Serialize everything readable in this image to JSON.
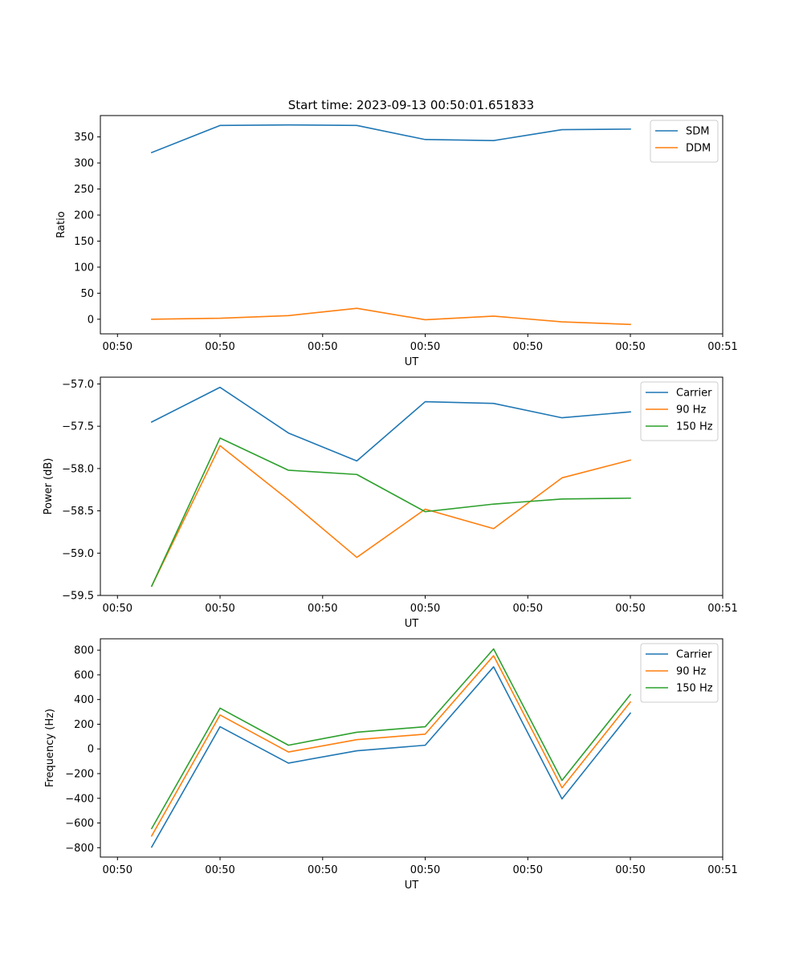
{
  "figure": {
    "title": "Start time: 2023-09-13 00:50:01.651833"
  },
  "colors": {
    "blue": "#1f77b4",
    "orange": "#ff7f0e",
    "green": "#2ca02c"
  },
  "chart_data": [
    {
      "type": "line",
      "title": "Start time: 2023-09-13 00:50:01.651833",
      "xlabel": "UT",
      "ylabel": "Ratio",
      "x": [
        1,
        2,
        3,
        4,
        5,
        6,
        7,
        8
      ],
      "xlim": [
        0.25,
        9.35
      ],
      "ylim": [
        -28,
        391
      ],
      "xticks": [
        0.5,
        2,
        3.5,
        5,
        6.5,
        8,
        9.35
      ],
      "xtick_labels": [
        "00:50",
        "00:50",
        "00:50",
        "00:50",
        "00:50",
        "00:50",
        "00:51"
      ],
      "yticks": [
        0,
        50,
        100,
        150,
        200,
        250,
        300,
        350
      ],
      "ytick_labels": [
        "0",
        "50",
        "100",
        "150",
        "200",
        "250",
        "300",
        "350"
      ],
      "legend": "top-right",
      "series": [
        {
          "name": "SDM",
          "color": "#1f77b4",
          "values": [
            320,
            372,
            373,
            372,
            345,
            343,
            364,
            365
          ]
        },
        {
          "name": "DDM",
          "color": "#ff7f0e",
          "values": [
            0,
            2,
            7,
            21,
            -1,
            6,
            -5,
            -10
          ]
        }
      ]
    },
    {
      "type": "line",
      "title": "",
      "xlabel": "UT",
      "ylabel": "Power (dB)",
      "x": [
        1,
        2,
        3,
        4,
        5,
        6,
        7,
        8
      ],
      "xlim": [
        0.25,
        9.35
      ],
      "ylim": [
        -59.5,
        -56.92
      ],
      "xticks": [
        0.5,
        2,
        3.5,
        5,
        6.5,
        8,
        9.35
      ],
      "xtick_labels": [
        "00:50",
        "00:50",
        "00:50",
        "00:50",
        "00:50",
        "00:50",
        "00:51"
      ],
      "yticks": [
        -59.5,
        -59.0,
        -58.5,
        -58.0,
        -57.5,
        -57.0
      ],
      "ytick_labels": [
        "−59.5",
        "−59.0",
        "−58.5",
        "−58.0",
        "−57.5",
        "−57.0"
      ],
      "legend": "top-right",
      "series": [
        {
          "name": "Carrier",
          "color": "#1f77b4",
          "values": [
            -57.45,
            -57.04,
            -57.58,
            -57.91,
            -57.21,
            -57.23,
            -57.4,
            -57.33
          ]
        },
        {
          "name": "90 Hz",
          "color": "#ff7f0e",
          "values": [
            -59.39,
            -57.73,
            -58.37,
            -59.05,
            -58.48,
            -58.71,
            -58.11,
            -57.9
          ]
        },
        {
          "name": "150 Hz",
          "color": "#2ca02c",
          "values": [
            -59.39,
            -57.64,
            -58.02,
            -58.07,
            -58.51,
            -58.42,
            -58.36,
            -58.35
          ]
        }
      ]
    },
    {
      "type": "line",
      "title": "",
      "xlabel": "UT",
      "ylabel": "Frequency (Hz)",
      "x": [
        1,
        2,
        3,
        4,
        5,
        6,
        7,
        8
      ],
      "xlim": [
        0.25,
        9.35
      ],
      "ylim": [
        -876,
        892
      ],
      "xticks": [
        0.5,
        2,
        3.5,
        5,
        6.5,
        8,
        9.35
      ],
      "xtick_labels": [
        "00:50",
        "00:50",
        "00:50",
        "00:50",
        "00:50",
        "00:50",
        "00:51"
      ],
      "yticks": [
        -800,
        -600,
        -400,
        -200,
        0,
        200,
        400,
        600,
        800
      ],
      "ytick_labels": [
        "−800",
        "−600",
        "−400",
        "−200",
        "0",
        "200",
        "400",
        "600",
        "800"
      ],
      "legend": "top-right",
      "series": [
        {
          "name": "Carrier",
          "color": "#1f77b4",
          "values": [
            -795,
            180,
            -115,
            -15,
            30,
            665,
            -405,
            290
          ]
        },
        {
          "name": "90 Hz",
          "color": "#ff7f0e",
          "values": [
            -705,
            275,
            -25,
            75,
            120,
            755,
            -315,
            380
          ]
        },
        {
          "name": "150 Hz",
          "color": "#2ca02c",
          "values": [
            -645,
            330,
            30,
            135,
            180,
            810,
            -255,
            440
          ]
        }
      ]
    }
  ]
}
